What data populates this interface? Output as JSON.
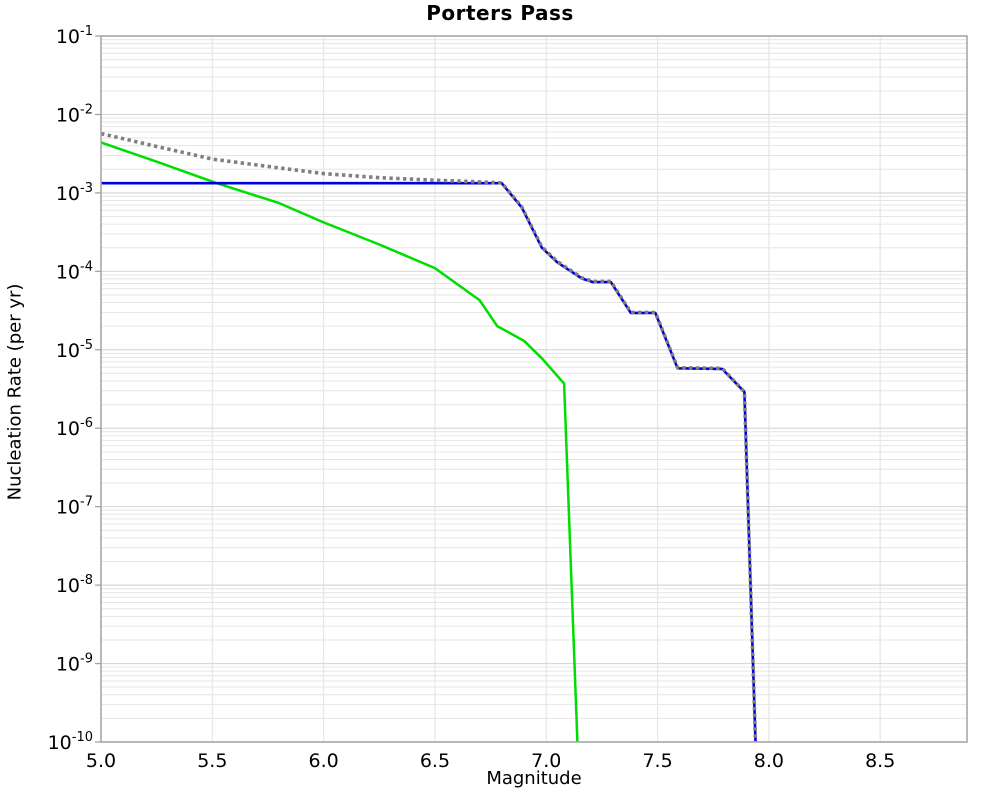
{
  "title": "Porters Pass",
  "chart_data": {
    "type": "line",
    "title": "Porters Pass",
    "xlabel": "Magnitude",
    "ylabel": "Nucleation Rate (per yr)",
    "xlim": [
      5.0,
      8.89
    ],
    "ylim_exp": [
      -1,
      -10
    ],
    "xticks": [
      5.0,
      5.5,
      6.0,
      6.5,
      7.0,
      7.5,
      8.0,
      8.5
    ],
    "xtick_labels": [
      "5.0",
      "5.5",
      "6.0",
      "6.5",
      "7.0",
      "7.5",
      "8.0",
      "8.5"
    ],
    "ytick_exponents": [
      -1,
      -2,
      -3,
      -4,
      -5,
      -6,
      -7,
      -8,
      -9,
      -10
    ],
    "grid": true,
    "legend": "none",
    "colors": {
      "blue_line": "#0000dd",
      "green_line": "#00dd00",
      "gray_dotted_line": "#7f7f7f",
      "grid_minor": "#e6e6e6",
      "grid_major": "#d9d9d9",
      "axis_border": "#a3a3a3"
    },
    "series": [
      {
        "name": "green-line",
        "color": "#00dd00",
        "style": "solid",
        "width": 2.5,
        "points": [
          [
            5.0,
            0.0044
          ],
          [
            5.1,
            0.0035
          ],
          [
            5.25,
            0.0025
          ],
          [
            5.52,
            0.00133
          ],
          [
            5.8,
            0.00074
          ],
          [
            6.0,
            0.00042
          ],
          [
            6.25,
            0.00022
          ],
          [
            6.5,
            0.00011
          ],
          [
            6.7,
            4.3e-05
          ],
          [
            6.78,
            2e-05
          ],
          [
            6.9,
            1.3e-05
          ],
          [
            6.98,
            7.8e-06
          ],
          [
            7.08,
            3.7e-06
          ],
          [
            7.14,
            1e-10
          ]
        ]
      },
      {
        "name": "blue-line",
        "color": "#0000dd",
        "style": "solid",
        "width": 2.6,
        "points": [
          [
            5.0,
            0.00133
          ],
          [
            6.8,
            0.00133
          ],
          [
            6.89,
            0.00065
          ],
          [
            6.98,
            0.0002
          ],
          [
            7.05,
            0.00013
          ],
          [
            7.16,
            8.1e-05
          ],
          [
            7.21,
            7.3e-05
          ],
          [
            7.29,
            7.3e-05
          ],
          [
            7.38,
            2.95e-05
          ],
          [
            7.49,
            2.95e-05
          ],
          [
            7.59,
            5.8e-06
          ],
          [
            7.79,
            5.7e-06
          ],
          [
            7.89,
            2.9e-06
          ],
          [
            7.94,
            1e-10
          ]
        ]
      },
      {
        "name": "gray-dotted-line",
        "color": "#7f7f7f",
        "style": "dotted",
        "width": 3.6,
        "points": [
          [
            5.0,
            0.0057
          ],
          [
            5.1,
            0.0049
          ],
          [
            5.25,
            0.0039
          ],
          [
            5.5,
            0.0027
          ],
          [
            5.8,
            0.00208
          ],
          [
            6.0,
            0.00176
          ],
          [
            6.25,
            0.00156
          ],
          [
            6.5,
            0.00145
          ],
          [
            6.7,
            0.00138
          ],
          [
            6.8,
            0.00134
          ],
          [
            6.89,
            0.00066
          ],
          [
            6.98,
            0.000205
          ],
          [
            7.05,
            0.000133
          ],
          [
            7.16,
            8.25e-05
          ],
          [
            7.21,
            7.45e-05
          ],
          [
            7.29,
            7.45e-05
          ],
          [
            7.38,
            3e-05
          ],
          [
            7.49,
            3e-05
          ],
          [
            7.59,
            5.9e-06
          ],
          [
            7.79,
            5.8e-06
          ],
          [
            7.89,
            2.9e-06
          ],
          [
            7.94,
            1e-10
          ]
        ]
      }
    ]
  }
}
